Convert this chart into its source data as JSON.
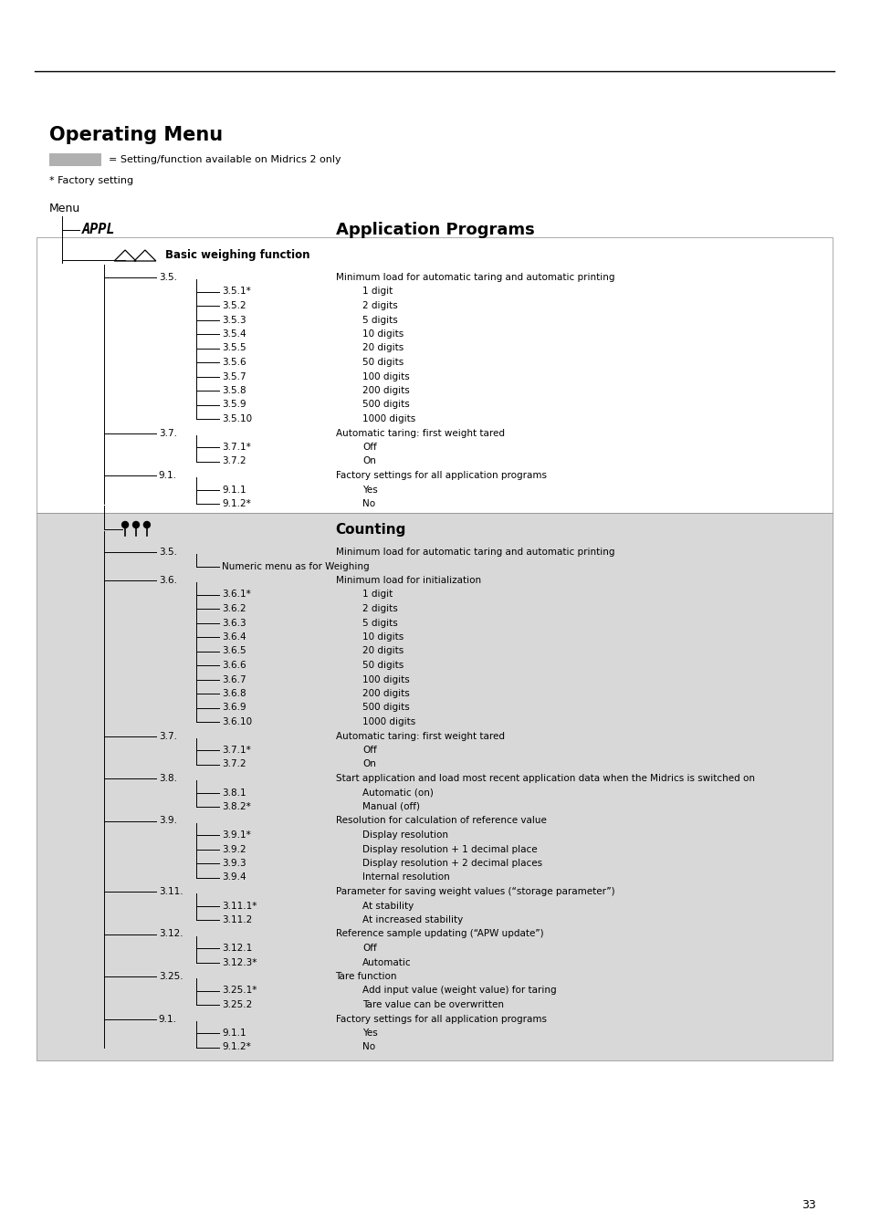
{
  "title": "Operating Menu",
  "legend_text": "= Setting/function available on Midrics 2 only",
  "factory_note": "* Factory setting",
  "menu_label": "Menu",
  "page_number": "33",
  "section1_rows": [
    {
      "indent": 2,
      "label": "3.5.",
      "desc": "Minimum load for automatic taring and automatic printing"
    },
    {
      "indent": 3,
      "label": "3.5.1*",
      "desc": "1 digit"
    },
    {
      "indent": 3,
      "label": "3.5.2",
      "desc": "2 digits"
    },
    {
      "indent": 3,
      "label": "3.5.3",
      "desc": "5 digits"
    },
    {
      "indent": 3,
      "label": "3.5.4",
      "desc": "10 digits"
    },
    {
      "indent": 3,
      "label": "3.5.5",
      "desc": "20 digits"
    },
    {
      "indent": 3,
      "label": "3.5.6",
      "desc": "50 digits"
    },
    {
      "indent": 3,
      "label": "3.5.7",
      "desc": "100 digits"
    },
    {
      "indent": 3,
      "label": "3.5.8",
      "desc": "200 digits"
    },
    {
      "indent": 3,
      "label": "3.5.9",
      "desc": "500 digits"
    },
    {
      "indent": 3,
      "label": "3.5.10",
      "desc": "1000 digits"
    },
    {
      "indent": 2,
      "label": "3.7.",
      "desc": "Automatic taring: first weight tared"
    },
    {
      "indent": 3,
      "label": "3.7.1*",
      "desc": "Off"
    },
    {
      "indent": 3,
      "label": "3.7.2",
      "desc": "On"
    },
    {
      "indent": 2,
      "label": "9.1.",
      "desc": "Factory settings for all application programs"
    },
    {
      "indent": 3,
      "label": "9.1.1",
      "desc": "Yes"
    },
    {
      "indent": 3,
      "label": "9.1.2*",
      "desc": "No"
    }
  ],
  "section2_rows": [
    {
      "indent": 2,
      "label": "3.5.",
      "desc": "Minimum load for automatic taring and automatic printing"
    },
    {
      "indent": 3,
      "label": "",
      "desc": "Numeric menu as for Weighing",
      "sub_note": true
    },
    {
      "indent": 2,
      "label": "3.6.",
      "desc": "Minimum load for initialization"
    },
    {
      "indent": 3,
      "label": "3.6.1*",
      "desc": "1 digit"
    },
    {
      "indent": 3,
      "label": "3.6.2",
      "desc": "2 digits"
    },
    {
      "indent": 3,
      "label": "3.6.3",
      "desc": "5 digits"
    },
    {
      "indent": 3,
      "label": "3.6.4",
      "desc": "10 digits"
    },
    {
      "indent": 3,
      "label": "3.6.5",
      "desc": "20 digits"
    },
    {
      "indent": 3,
      "label": "3.6.6",
      "desc": "50 digits"
    },
    {
      "indent": 3,
      "label": "3.6.7",
      "desc": "100 digits"
    },
    {
      "indent": 3,
      "label": "3.6.8",
      "desc": "200 digits"
    },
    {
      "indent": 3,
      "label": "3.6.9",
      "desc": "500 digits"
    },
    {
      "indent": 3,
      "label": "3.6.10",
      "desc": "1000 digits"
    },
    {
      "indent": 2,
      "label": "3.7.",
      "desc": "Automatic taring: first weight tared"
    },
    {
      "indent": 3,
      "label": "3.7.1*",
      "desc": "Off"
    },
    {
      "indent": 3,
      "label": "3.7.2",
      "desc": "On"
    },
    {
      "indent": 2,
      "label": "3.8.",
      "desc": "Start application and load most recent application data when the Midrics is switched on"
    },
    {
      "indent": 3,
      "label": "3.8.1",
      "desc": "Automatic (on)"
    },
    {
      "indent": 3,
      "label": "3.8.2*",
      "desc": "Manual (off)"
    },
    {
      "indent": 2,
      "label": "3.9.",
      "desc": "Resolution for calculation of reference value"
    },
    {
      "indent": 3,
      "label": "3.9.1*",
      "desc": "Display resolution"
    },
    {
      "indent": 3,
      "label": "3.9.2",
      "desc": "Display resolution + 1 decimal place"
    },
    {
      "indent": 3,
      "label": "3.9.3",
      "desc": "Display resolution + 2 decimal places"
    },
    {
      "indent": 3,
      "label": "3.9.4",
      "desc": "Internal resolution"
    },
    {
      "indent": 2,
      "label": "3.11.",
      "desc": "Parameter for saving weight values (“storage parameter”)"
    },
    {
      "indent": 3,
      "label": "3.11.1*",
      "desc": "At stability"
    },
    {
      "indent": 3,
      "label": "3.11.2",
      "desc": "At increased stability"
    },
    {
      "indent": 2,
      "label": "3.12.",
      "desc": "Reference sample updating (“APW update”)"
    },
    {
      "indent": 3,
      "label": "3.12.1",
      "desc": "Off"
    },
    {
      "indent": 3,
      "label": "3.12.3*",
      "desc": "Automatic"
    },
    {
      "indent": 2,
      "label": "3.25.",
      "desc": "Tare function"
    },
    {
      "indent": 3,
      "label": "3.25.1*",
      "desc": "Add input value (weight value) for taring"
    },
    {
      "indent": 3,
      "label": "3.25.2",
      "desc": "Tare value can be overwritten"
    },
    {
      "indent": 2,
      "label": "9.1.",
      "desc": "Factory settings for all application programs"
    },
    {
      "indent": 3,
      "label": "9.1.1",
      "desc": "Yes"
    },
    {
      "indent": 3,
      "label": "9.1.2*",
      "desc": "No"
    }
  ]
}
